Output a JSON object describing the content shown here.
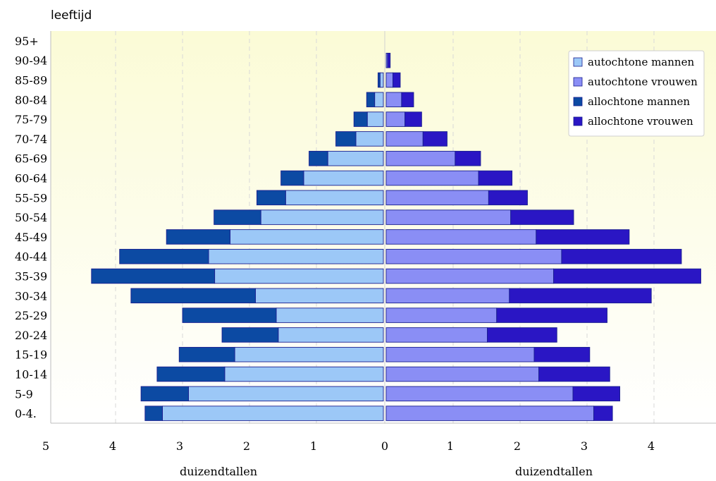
{
  "chart_data": {
    "type": "bar",
    "orientation": "horizontal",
    "layout": "population-pyramid",
    "y_axis_title": "leeftijd",
    "categories": [
      "95+",
      "90-94",
      "85-89",
      "80-84",
      "75-79",
      "70-74",
      "65-69",
      "60-64",
      "55-59",
      "50-54",
      "45-49",
      "40-44",
      "35-39",
      "30-34",
      "25-29",
      "20-24",
      "15-19",
      "10-14",
      "5-9",
      "0-4."
    ],
    "left_side": {
      "label": "duizendtallen",
      "ticks": [
        "5",
        "4",
        "3",
        "2",
        "1",
        "0"
      ],
      "xlim": [
        5,
        0
      ]
    },
    "right_side": {
      "label": "duizendtallen",
      "ticks": [
        "0",
        "1",
        "2",
        "3",
        "4"
      ],
      "xlim": [
        0,
        4.9
      ]
    },
    "series": [
      {
        "name": "autochtone mannen",
        "side": "left",
        "stack": 0,
        "color": "#9cc8f7",
        "values": [
          0,
          0,
          0.05,
          0.13,
          0.24,
          0.41,
          0.83,
          1.19,
          1.46,
          1.83,
          2.29,
          2.61,
          2.52,
          1.91,
          1.6,
          1.57,
          2.22,
          2.37,
          2.91,
          3.3
        ]
      },
      {
        "name": "autochtone vrouwen",
        "side": "right",
        "stack": 0,
        "color": "#8a8ef5",
        "values": [
          0,
          0.02,
          0.1,
          0.23,
          0.28,
          0.55,
          1.03,
          1.38,
          1.53,
          1.86,
          2.24,
          2.62,
          2.5,
          1.84,
          1.65,
          1.51,
          2.21,
          2.28,
          2.79,
          3.1
        ]
      },
      {
        "name": "allochtone mannen",
        "side": "left",
        "stack": 1,
        "color": "#0c4aa3",
        "values": [
          0,
          0,
          0.03,
          0.12,
          0.2,
          0.3,
          0.28,
          0.34,
          0.43,
          0.7,
          0.95,
          1.33,
          1.84,
          1.86,
          1.4,
          0.84,
          0.83,
          1.01,
          0.71,
          0.26
        ]
      },
      {
        "name": "allochtone vrouwen",
        "side": "right",
        "stack": 1,
        "color": "#2a16c4",
        "values": [
          0,
          0.04,
          0.11,
          0.18,
          0.25,
          0.36,
          0.38,
          0.5,
          0.58,
          0.94,
          1.39,
          1.79,
          2.2,
          2.12,
          1.65,
          1.04,
          0.83,
          1.06,
          0.7,
          0.28
        ]
      }
    ],
    "legend_position": "top-right",
    "grid": true
  }
}
